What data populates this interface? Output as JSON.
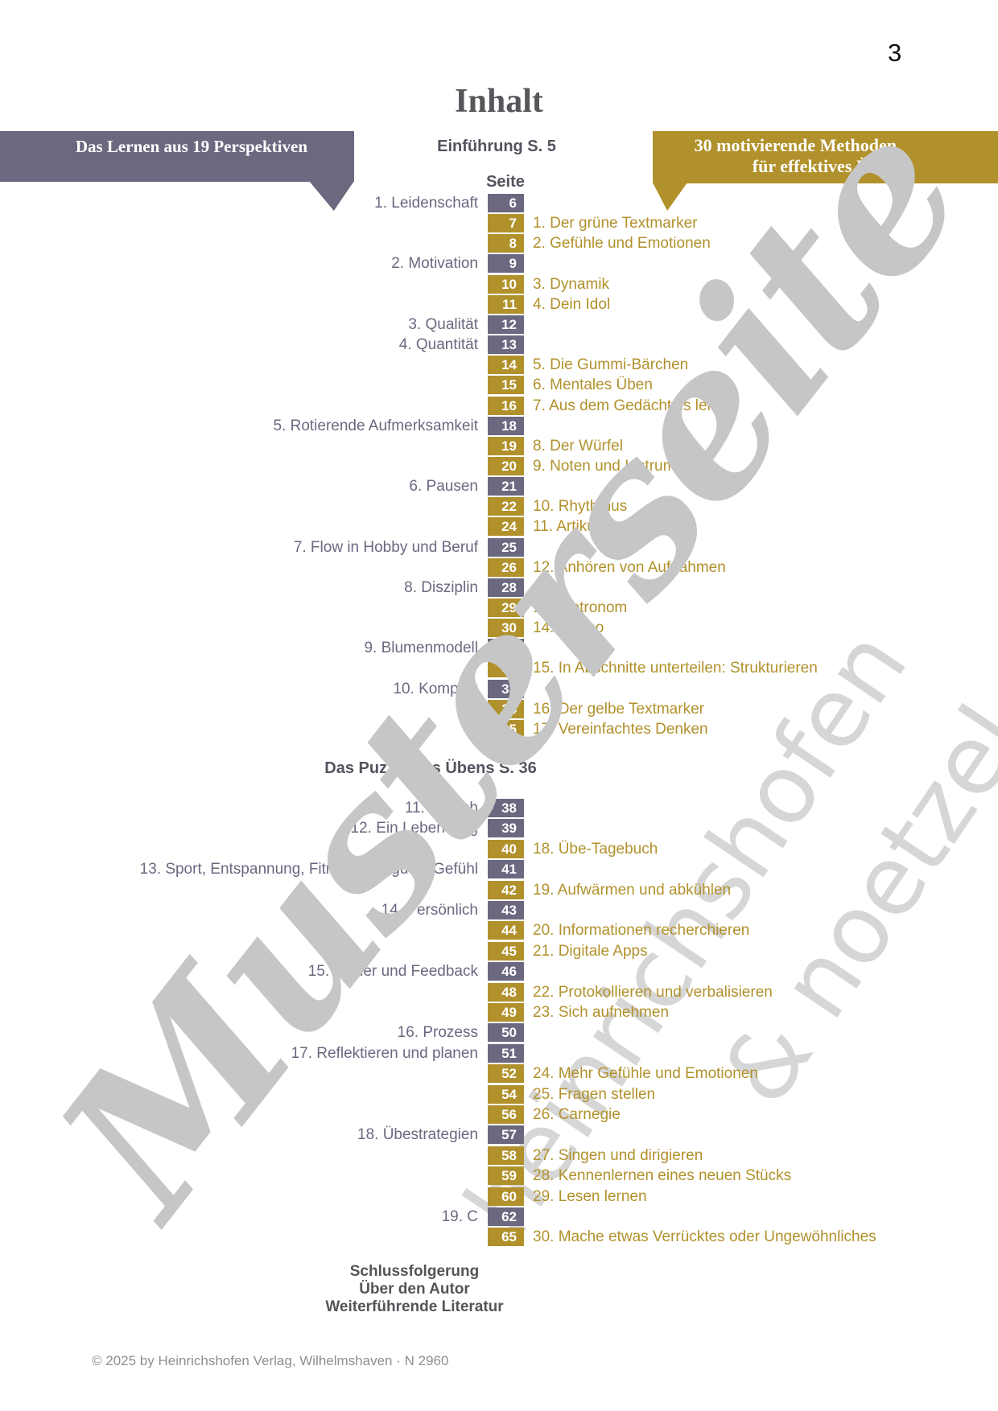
{
  "page": {
    "number": "3",
    "title": "Inhalt",
    "footer": "© 2025 by Heinrichshofen Verlag, Wilhelmshaven · N 2960"
  },
  "colors": {
    "purple": "#6b6880",
    "gold": "#b1912b",
    "heading_text": "#54535e",
    "watermark_dark": "#c6c6c6",
    "watermark_light": "#d6d6d6"
  },
  "banners": {
    "left": {
      "label": "Das Lernen aus 19 Perspektiven"
    },
    "right": {
      "line1": "30 motivierende Methoden",
      "line2": "für effektives Üben"
    }
  },
  "sections": {
    "intro": "Einführung S. 5",
    "column_header": "Seite",
    "middle": "Das Puzzle des Übens S. 36",
    "end": [
      "Schlussfolgerung",
      "Über den Autor",
      "Weiterführende Literatur"
    ]
  },
  "watermarks": {
    "sample": "Musterseite",
    "publisher_1": "heinrichshofen",
    "publisher_2": "& noetzel"
  },
  "toc_rows": [
    {
      "page": "6",
      "side": "left",
      "label": "1. Leidenschaft",
      "group": 1
    },
    {
      "page": "7",
      "side": "right",
      "label": "1. Der grüne Textmarker",
      "group": 1
    },
    {
      "page": "8",
      "side": "right",
      "label": "2. Gefühle und Emotionen",
      "group": 1
    },
    {
      "page": "9",
      "side": "left",
      "label": "2. Motivation",
      "group": 1
    },
    {
      "page": "10",
      "side": "right",
      "label": "3. Dynamik",
      "group": 1
    },
    {
      "page": "11",
      "side": "right",
      "label": "4. Dein Idol",
      "group": 1
    },
    {
      "page": "12",
      "side": "left",
      "label": "3. Qualität",
      "group": 1
    },
    {
      "page": "13",
      "side": "left",
      "label": "4. Quantität",
      "group": 1
    },
    {
      "page": "14",
      "side": "right",
      "label": "5. Die Gummi-Bärchen",
      "group": 1
    },
    {
      "page": "15",
      "side": "right",
      "label": "6. Mentales Üben",
      "group": 1
    },
    {
      "page": "16",
      "side": "right",
      "label": "7. Aus dem Gedächtnis lernen",
      "group": 1
    },
    {
      "page": "18",
      "side": "left",
      "label": "5. Rotierende Aufmerksamkeit",
      "group": 1
    },
    {
      "page": "19",
      "side": "right",
      "label": "8. Der Würfel",
      "group": 1
    },
    {
      "page": "20",
      "side": "right",
      "label": "9. Noten und Instrument",
      "group": 1
    },
    {
      "page": "21",
      "side": "left",
      "label": "6. Pausen",
      "group": 1
    },
    {
      "page": "22",
      "side": "right",
      "label": "10. Rhythmus",
      "group": 1
    },
    {
      "page": "24",
      "side": "right",
      "label": "11. Artikulation",
      "group": 1
    },
    {
      "page": "25",
      "side": "left",
      "label": "7. Flow in Hobby und Beruf",
      "group": 1
    },
    {
      "page": "26",
      "side": "right",
      "label": "12. Anhören von Aufnahmen",
      "group": 1
    },
    {
      "page": "28",
      "side": "left",
      "label": "8. Disziplin",
      "group": 1
    },
    {
      "page": "29",
      "side": "right",
      "label": "13. Metronom",
      "group": 1
    },
    {
      "page": "30",
      "side": "right",
      "label": "14. Tempo",
      "group": 1
    },
    {
      "page": "31",
      "side": "left",
      "label": "9. Blumenmodell",
      "group": 1
    },
    {
      "page": "32",
      "side": "right",
      "label": "15. In Abschnitte unterteilen: Strukturieren",
      "group": 1
    },
    {
      "page": "33",
      "side": "left",
      "label": "10. Komplex",
      "group": 1
    },
    {
      "page": "34",
      "side": "right",
      "label": "16. Der gelbe Textmarker",
      "group": 1
    },
    {
      "page": "35",
      "side": "right",
      "label": "17. Vereinfachtes Denken",
      "group": 1
    },
    {
      "page": "38",
      "side": "left",
      "label": "11. Täglich",
      "group": 2
    },
    {
      "page": "39",
      "side": "left",
      "label": "12. Ein Leben lang",
      "group": 2
    },
    {
      "page": "40",
      "side": "right",
      "label": "18. Übe-Tagebuch",
      "group": 2
    },
    {
      "page": "41",
      "side": "left",
      "label": "13. Sport, Entspannung, Fitness, ein gutes Gefühl",
      "group": 2
    },
    {
      "page": "42",
      "side": "right",
      "label": "19. Aufwärmen und abkühlen",
      "group": 2
    },
    {
      "page": "43",
      "side": "left",
      "label": "14. Persönlich",
      "group": 2
    },
    {
      "page": "44",
      "side": "right",
      "label": "20. Informationen recherchieren",
      "group": 2
    },
    {
      "page": "45",
      "side": "right",
      "label": "21. Digitale Apps",
      "group": 2
    },
    {
      "page": "46",
      "side": "left",
      "label": "15. Fehler und Feedback",
      "group": 2
    },
    {
      "page": "48",
      "side": "right",
      "label": "22. Protokollieren und verbalisieren",
      "group": 2
    },
    {
      "page": "49",
      "side": "right",
      "label": "23. Sich aufnehmen",
      "group": 2
    },
    {
      "page": "50",
      "side": "left",
      "label": "16. Prozess",
      "group": 2
    },
    {
      "page": "51",
      "side": "left",
      "label": "17. Reflektieren und planen",
      "group": 2
    },
    {
      "page": "52",
      "side": "right",
      "label": "24. Mehr Gefühle und Emotionen",
      "group": 2
    },
    {
      "page": "54",
      "side": "right",
      "label": "25. Fragen stellen",
      "group": 2
    },
    {
      "page": "56",
      "side": "right",
      "label": "26. Carnegie",
      "group": 2
    },
    {
      "page": "57",
      "side": "left",
      "label": "18. Übestrategien",
      "group": 2
    },
    {
      "page": "58",
      "side": "right",
      "label": "27. Singen und dirigieren",
      "group": 2
    },
    {
      "page": "59",
      "side": "right",
      "label": "28. Kennenlernen eines neuen Stücks",
      "group": 2
    },
    {
      "page": "60",
      "side": "right",
      "label": "29. Lesen lernen",
      "group": 2
    },
    {
      "page": "62",
      "side": "left",
      "label": "19. C",
      "group": 2
    },
    {
      "page": "65",
      "side": "right",
      "label": "30. Mache etwas Verrücktes oder Ungewöhnliches",
      "group": 2
    }
  ]
}
